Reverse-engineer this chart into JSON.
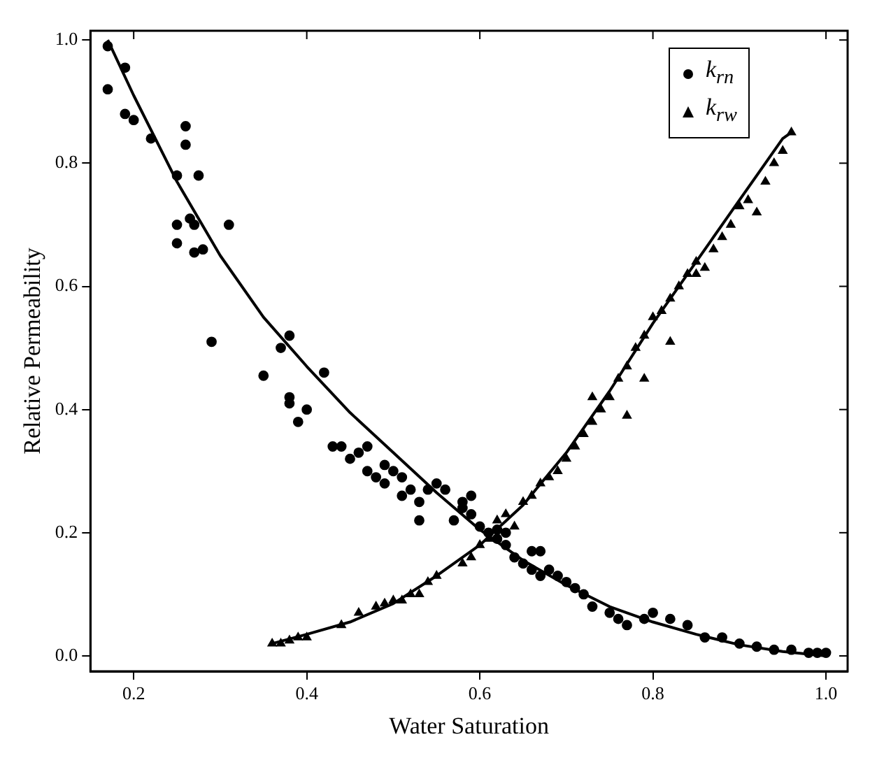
{
  "chart_data": {
    "type": "scatter",
    "xlabel": "Water Saturation",
    "ylabel": "Relative Permeability",
    "xlim": [
      0.15,
      1.025
    ],
    "ylim": [
      -0.025,
      1.015
    ],
    "xticks": [
      0.2,
      0.4,
      0.6,
      0.8,
      {
        "value": 1,
        "label": "1.0"
      }
    ],
    "yticks": [
      {
        "value": 0,
        "label": "0.0"
      },
      0.2,
      0.4,
      0.6,
      0.8,
      {
        "value": 1,
        "label": "1.0"
      }
    ],
    "grid": false,
    "legend": "top right",
    "series": [
      {
        "name": "k$_{rn}$",
        "marker": "circle",
        "color": "#000000",
        "x": [
          0.17,
          0.17,
          0.19,
          0.19,
          0.2,
          0.22,
          0.25,
          0.25,
          0.25,
          0.26,
          0.26,
          0.265,
          0.27,
          0.27,
          0.275,
          0.28,
          0.29,
          0.31,
          0.35,
          0.37,
          0.38,
          0.38,
          0.38,
          0.39,
          0.4,
          0.42,
          0.43,
          0.44,
          0.45,
          0.46,
          0.47,
          0.47,
          0.48,
          0.49,
          0.49,
          0.5,
          0.51,
          0.51,
          0.52,
          0.53,
          0.53,
          0.54,
          0.55,
          0.56,
          0.57,
          0.58,
          0.58,
          0.59,
          0.59,
          0.6,
          0.61,
          0.62,
          0.62,
          0.63,
          0.63,
          0.64,
          0.65,
          0.66,
          0.66,
          0.67,
          0.67,
          0.68,
          0.69,
          0.7,
          0.71,
          0.72,
          0.73,
          0.75,
          0.76,
          0.77,
          0.79,
          0.8,
          0.82,
          0.84,
          0.86,
          0.88,
          0.9,
          0.92,
          0.94,
          0.96,
          0.98,
          0.99,
          1.0
        ],
        "values": [
          0.99,
          0.92,
          0.955,
          0.88,
          0.87,
          0.84,
          0.78,
          0.7,
          0.67,
          0.86,
          0.83,
          0.71,
          0.7,
          0.655,
          0.78,
          0.66,
          0.51,
          0.7,
          0.455,
          0.5,
          0.52,
          0.42,
          0.41,
          0.38,
          0.4,
          0.46,
          0.34,
          0.34,
          0.32,
          0.33,
          0.34,
          0.3,
          0.29,
          0.31,
          0.28,
          0.3,
          0.29,
          0.26,
          0.27,
          0.25,
          0.22,
          0.27,
          0.28,
          0.27,
          0.22,
          0.24,
          0.25,
          0.23,
          0.26,
          0.21,
          0.2,
          0.19,
          0.205,
          0.18,
          0.2,
          0.16,
          0.15,
          0.14,
          0.17,
          0.13,
          0.17,
          0.14,
          0.13,
          0.12,
          0.11,
          0.1,
          0.08,
          0.07,
          0.06,
          0.05,
          0.06,
          0.07,
          0.06,
          0.05,
          0.03,
          0.03,
          0.02,
          0.015,
          0.01,
          0.01,
          0.005,
          0.005,
          0.005
        ]
      },
      {
        "name": "k$_{rw}$",
        "marker": "triangle",
        "color": "#000000",
        "x": [
          0.36,
          0.37,
          0.38,
          0.39,
          0.4,
          0.44,
          0.46,
          0.48,
          0.49,
          0.5,
          0.51,
          0.52,
          0.53,
          0.54,
          0.55,
          0.58,
          0.59,
          0.6,
          0.61,
          0.62,
          0.63,
          0.64,
          0.65,
          0.66,
          0.67,
          0.68,
          0.69,
          0.7,
          0.71,
          0.72,
          0.73,
          0.73,
          0.74,
          0.75,
          0.76,
          0.77,
          0.77,
          0.78,
          0.79,
          0.79,
          0.8,
          0.81,
          0.82,
          0.82,
          0.83,
          0.84,
          0.85,
          0.85,
          0.86,
          0.87,
          0.88,
          0.89,
          0.9,
          0.91,
          0.92,
          0.93,
          0.94,
          0.95,
          0.96
        ],
        "values": [
          0.02,
          0.02,
          0.025,
          0.03,
          0.03,
          0.05,
          0.07,
          0.08,
          0.085,
          0.09,
          0.09,
          0.1,
          0.1,
          0.12,
          0.13,
          0.15,
          0.16,
          0.18,
          0.19,
          0.22,
          0.23,
          0.21,
          0.25,
          0.26,
          0.28,
          0.29,
          0.3,
          0.32,
          0.34,
          0.36,
          0.38,
          0.42,
          0.4,
          0.42,
          0.45,
          0.47,
          0.39,
          0.5,
          0.52,
          0.45,
          0.55,
          0.56,
          0.58,
          0.51,
          0.6,
          0.62,
          0.64,
          0.62,
          0.63,
          0.66,
          0.68,
          0.7,
          0.73,
          0.74,
          0.72,
          0.77,
          0.8,
          0.82,
          0.85
        ]
      },
      {
        "type": "line",
        "marker": "none",
        "line_style": "solid",
        "color": "#000000",
        "x": [
          0.17,
          0.2,
          0.25,
          0.3,
          0.35,
          0.4,
          0.45,
          0.5,
          0.55,
          0.6,
          0.65,
          0.7,
          0.75,
          0.8,
          0.85,
          0.9,
          0.95,
          1.0
        ],
        "values": [
          1.0,
          0.91,
          0.77,
          0.65,
          0.55,
          0.47,
          0.395,
          0.33,
          0.265,
          0.205,
          0.155,
          0.115,
          0.08,
          0.055,
          0.035,
          0.018,
          0.007,
          0.0
        ]
      },
      {
        "type": "line",
        "marker": "none",
        "line_style": "solid",
        "color": "#000000",
        "x": [
          0.36,
          0.4,
          0.45,
          0.5,
          0.55,
          0.6,
          0.65,
          0.7,
          0.75,
          0.8,
          0.85,
          0.9,
          0.95,
          0.96
        ],
        "values": [
          0.02,
          0.035,
          0.055,
          0.085,
          0.13,
          0.18,
          0.245,
          0.33,
          0.43,
          0.54,
          0.64,
          0.74,
          0.84,
          0.85
        ]
      }
    ]
  }
}
